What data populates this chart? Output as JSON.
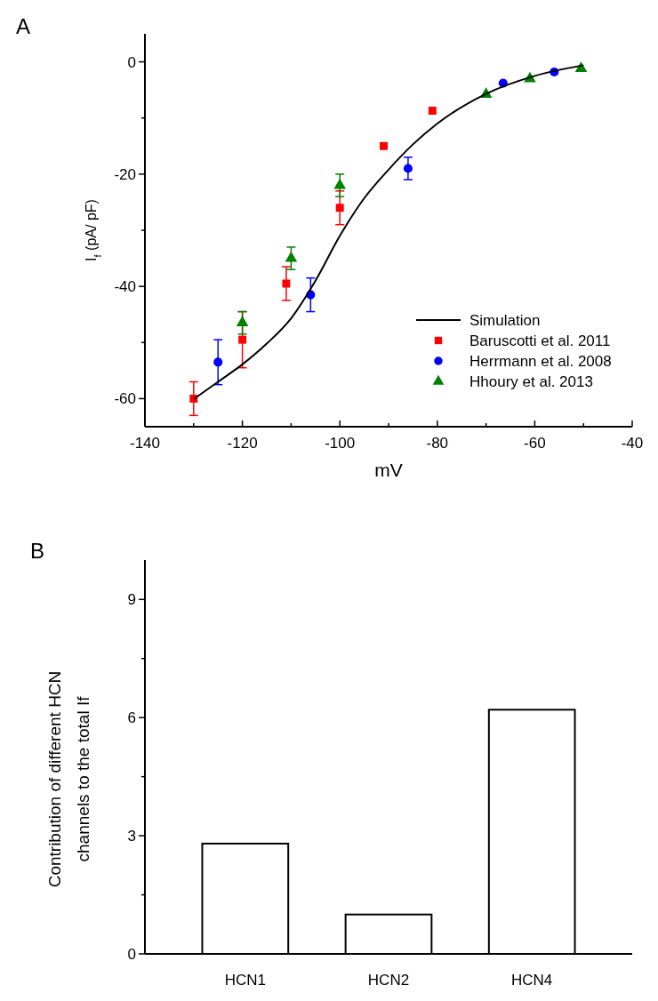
{
  "chart_data": [
    {
      "type": "scatter",
      "title": "A",
      "xlabel": "mV",
      "ylabel": "I$_{f}$ (pA/ pF)",
      "xlim": [
        -140,
        -40
      ],
      "ylim": [
        -65,
        5
      ],
      "xticks": [
        -140,
        {
          "value": -130,
          "label": null
        },
        -120,
        {
          "value": -110,
          "label": null
        },
        -100,
        {
          "value": -90,
          "label": null
        },
        -80,
        {
          "value": -70,
          "label": null
        },
        -60,
        {
          "value": -50,
          "label": null
        },
        -40
      ],
      "yticks": [
        -60,
        {
          "value": -50,
          "label": null
        },
        -40,
        {
          "value": -30,
          "label": null
        },
        -20,
        {
          "value": -10,
          "label": null
        },
        0
      ],
      "legend": "bottom right",
      "series": [
        {
          "name": "Simulation",
          "type": "line",
          "color": "#000000",
          "marker": "none",
          "line_style": "solid",
          "x": [
            -130,
            -125,
            -120,
            -115,
            -110,
            -105,
            -100,
            -95,
            -90,
            -85,
            -80,
            -70,
            -60,
            -50
          ],
          "values": [
            -60.1,
            -57,
            -53.9,
            -50.2,
            -45.7,
            -39,
            -31,
            -24.3,
            -19.2,
            -14.7,
            -11,
            -5.7,
            -2.5,
            -0.6
          ]
        },
        {
          "name": "Baruscotti et al.  2011",
          "color": "#ff0000",
          "marker": "square",
          "x": [
            -130,
            -120,
            -111,
            -100,
            -91,
            -81
          ],
          "values": [
            -60,
            -49.5,
            -39.5,
            -26,
            -15,
            -8.7
          ],
          "errors": [
            3,
            5,
            3,
            3,
            null,
            null
          ]
        },
        {
          "name": "Herrmann  et al. 2008",
          "color": "#0000ff",
          "marker": "circle",
          "x": [
            -125,
            -106,
            -86,
            -66.5,
            -56
          ],
          "values": [
            -53.5,
            -41.5,
            -19,
            -3.8,
            -1.8
          ],
          "errors": [
            4,
            3,
            2,
            null,
            null
          ]
        },
        {
          "name": "Hhoury et al. 2013",
          "color": "#008000",
          "marker": "triangle",
          "x": [
            -120,
            -110,
            -100,
            -70,
            -61,
            -50.5
          ],
          "values": [
            -46.5,
            -35,
            -22,
            -5.8,
            -3,
            -1.2
          ],
          "errors": [
            2,
            2,
            2,
            null,
            null,
            null
          ]
        }
      ]
    },
    {
      "type": "bar",
      "title": "B",
      "ylabel": "Contribution of different HCN channels to the total If",
      "categories": [
        "HCN1",
        "HCN2",
        "HCN4"
      ],
      "values": [
        2.8,
        1,
        6.2
      ],
      "color": "#ffffff",
      "ylim": [
        0,
        10
      ],
      "yticks": [
        0,
        {
          "value": 1.5,
          "label": null
        },
        3,
        {
          "value": 4.5,
          "label": null
        },
        6,
        {
          "value": 7.5,
          "label": null
        },
        9
      ]
    }
  ]
}
